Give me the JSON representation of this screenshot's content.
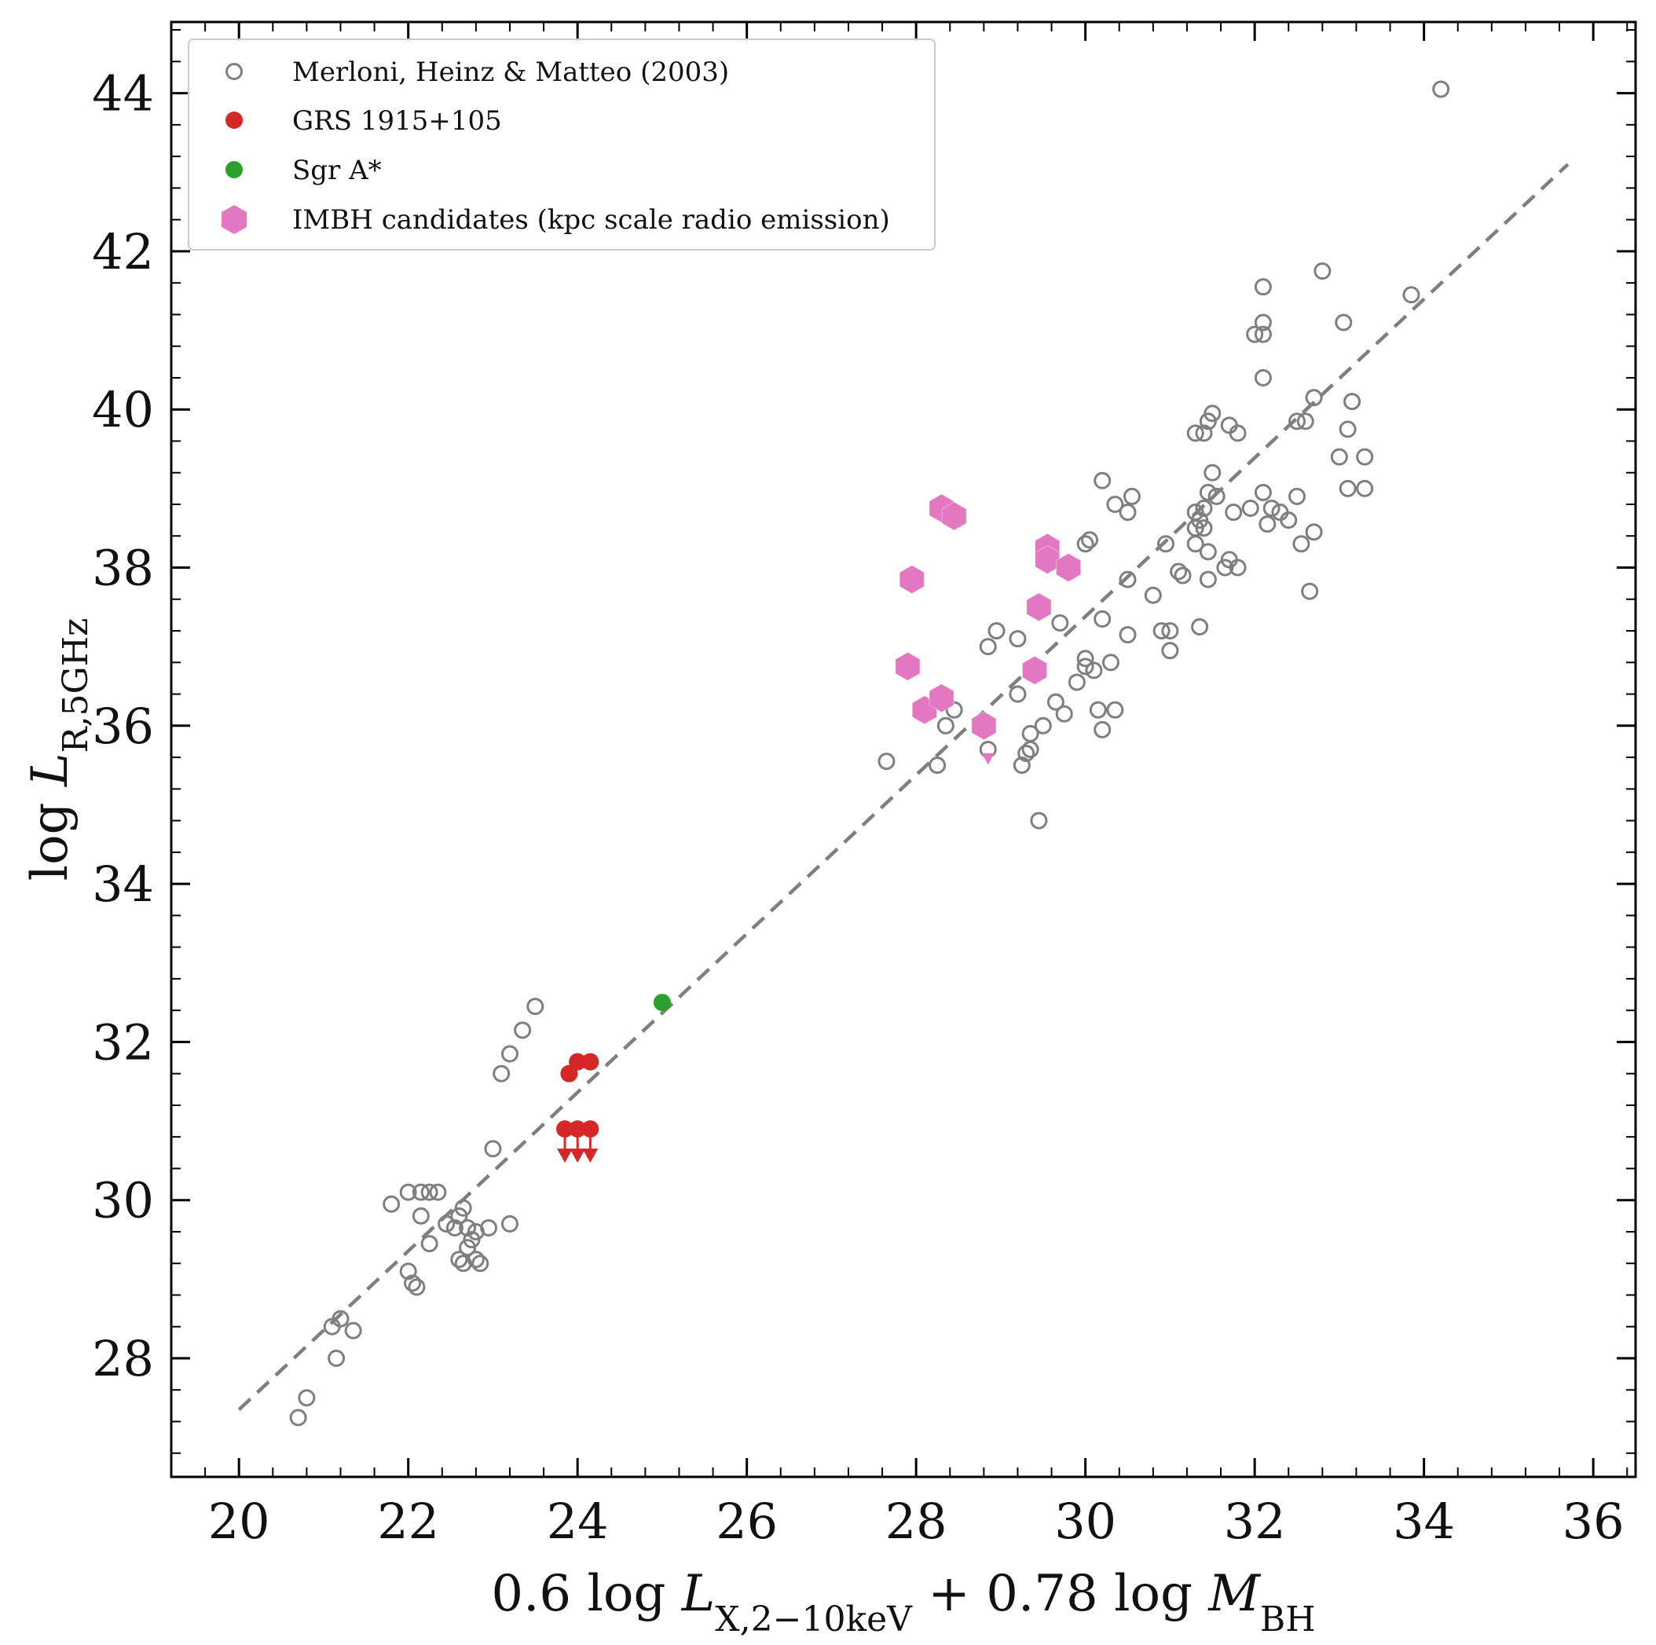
{
  "chart_data": {
    "type": "scatter",
    "xlabel": "0.6 log L_{X,2-10keV} + 0.78 log M_BH",
    "ylabel": "log L_{R,5GHz}",
    "xlim": [
      19.2,
      36.5
    ],
    "ylim": [
      26.5,
      44.9
    ],
    "xticks": [
      20,
      22,
      24,
      26,
      28,
      30,
      32,
      34,
      36
    ],
    "yticks": [
      28,
      30,
      32,
      34,
      36,
      38,
      40,
      42,
      44
    ],
    "grid": false,
    "legend_position": "upper-left",
    "fit_line": {
      "style": "dashed",
      "color": "#7f7f7f",
      "x": [
        20.0,
        35.7
      ],
      "y": [
        27.35,
        43.1
      ]
    },
    "series": [
      {
        "name": "Merloni, Heinz & Matteo (2003)",
        "marker": "open-circle",
        "color": "#7f7f7f",
        "points": [
          [
            20.7,
            27.25
          ],
          [
            20.8,
            27.5
          ],
          [
            21.1,
            28.4
          ],
          [
            21.2,
            28.5
          ],
          [
            21.35,
            28.35
          ],
          [
            21.15,
            28.0
          ],
          [
            21.8,
            29.95
          ],
          [
            22.0,
            30.1
          ],
          [
            22.15,
            30.1
          ],
          [
            22.25,
            30.1
          ],
          [
            22.35,
            30.1
          ],
          [
            22.15,
            29.8
          ],
          [
            22.25,
            29.45
          ],
          [
            22.0,
            29.1
          ],
          [
            22.05,
            28.95
          ],
          [
            22.1,
            28.9
          ],
          [
            22.45,
            29.7
          ],
          [
            22.6,
            29.8
          ],
          [
            22.65,
            29.9
          ],
          [
            22.55,
            29.65
          ],
          [
            22.6,
            29.25
          ],
          [
            22.7,
            29.4
          ],
          [
            22.75,
            29.5
          ],
          [
            22.8,
            29.6
          ],
          [
            22.65,
            29.2
          ],
          [
            22.8,
            29.25
          ],
          [
            22.85,
            29.2
          ],
          [
            22.95,
            29.65
          ],
          [
            22.7,
            29.65
          ],
          [
            23.0,
            30.65
          ],
          [
            23.1,
            31.6
          ],
          [
            23.2,
            31.85
          ],
          [
            23.35,
            32.15
          ],
          [
            23.5,
            32.45
          ],
          [
            23.2,
            29.7
          ],
          [
            27.65,
            35.55
          ],
          [
            28.25,
            35.5
          ],
          [
            28.35,
            36.0
          ],
          [
            28.45,
            36.2
          ],
          [
            28.85,
            35.7
          ],
          [
            28.85,
            37.0
          ],
          [
            28.95,
            37.2
          ],
          [
            29.2,
            37.1
          ],
          [
            29.2,
            36.4
          ],
          [
            29.25,
            35.5
          ],
          [
            29.3,
            35.65
          ],
          [
            29.35,
            35.7
          ],
          [
            29.35,
            35.9
          ],
          [
            29.5,
            36.0
          ],
          [
            29.45,
            34.8
          ],
          [
            29.65,
            36.3
          ],
          [
            29.75,
            36.15
          ],
          [
            29.7,
            37.3
          ],
          [
            29.9,
            36.55
          ],
          [
            30.0,
            36.75
          ],
          [
            30.0,
            36.85
          ],
          [
            30.1,
            36.7
          ],
          [
            30.15,
            36.2
          ],
          [
            30.2,
            35.95
          ],
          [
            30.3,
            36.8
          ],
          [
            30.35,
            36.2
          ],
          [
            30.2,
            37.35
          ],
          [
            30.5,
            37.15
          ],
          [
            30.5,
            37.85
          ],
          [
            30.05,
            38.35
          ],
          [
            30.0,
            38.3
          ],
          [
            30.2,
            39.1
          ],
          [
            30.35,
            38.8
          ],
          [
            30.5,
            38.7
          ],
          [
            30.55,
            38.9
          ],
          [
            30.8,
            37.65
          ],
          [
            30.9,
            37.2
          ],
          [
            30.95,
            38.3
          ],
          [
            31.0,
            37.2
          ],
          [
            31.0,
            36.95
          ],
          [
            31.1,
            37.95
          ],
          [
            31.15,
            37.9
          ],
          [
            31.3,
            38.3
          ],
          [
            31.3,
            38.5
          ],
          [
            31.35,
            38.6
          ],
          [
            31.4,
            38.5
          ],
          [
            31.3,
            38.7
          ],
          [
            31.4,
            38.75
          ],
          [
            31.35,
            37.25
          ],
          [
            31.45,
            38.2
          ],
          [
            31.45,
            37.85
          ],
          [
            31.45,
            38.95
          ],
          [
            31.5,
            39.2
          ],
          [
            31.55,
            38.9
          ],
          [
            31.65,
            38.0
          ],
          [
            31.7,
            38.1
          ],
          [
            31.8,
            38.0
          ],
          [
            31.75,
            38.7
          ],
          [
            31.3,
            39.7
          ],
          [
            31.4,
            39.7
          ],
          [
            31.45,
            39.85
          ],
          [
            31.5,
            39.95
          ],
          [
            31.7,
            39.8
          ],
          [
            31.8,
            39.7
          ],
          [
            31.95,
            38.75
          ],
          [
            32.1,
            38.95
          ],
          [
            32.2,
            38.75
          ],
          [
            32.3,
            38.7
          ],
          [
            32.4,
            38.6
          ],
          [
            32.15,
            38.55
          ],
          [
            32.55,
            38.3
          ],
          [
            32.7,
            38.45
          ],
          [
            32.65,
            37.7
          ],
          [
            32.5,
            38.9
          ],
          [
            32.5,
            39.85
          ],
          [
            32.6,
            39.85
          ],
          [
            32.7,
            40.15
          ],
          [
            33.0,
            39.4
          ],
          [
            33.1,
            39.75
          ],
          [
            33.1,
            39.0
          ],
          [
            33.3,
            39.4
          ],
          [
            33.3,
            39.0
          ],
          [
            33.15,
            40.1
          ],
          [
            32.0,
            40.95
          ],
          [
            32.1,
            40.95
          ],
          [
            32.1,
            41.1
          ],
          [
            32.1,
            41.55
          ],
          [
            32.1,
            40.4
          ],
          [
            32.8,
            41.75
          ],
          [
            33.05,
            41.1
          ],
          [
            33.85,
            41.45
          ],
          [
            34.2,
            44.05
          ]
        ]
      },
      {
        "name": "GRS 1915+105",
        "marker": "filled-circle",
        "color": "#d62728",
        "points": [
          [
            23.9,
            31.6
          ],
          [
            24.0,
            31.75
          ],
          [
            24.15,
            31.75
          ]
        ],
        "upper_limits": [
          [
            23.85,
            30.9
          ],
          [
            24.0,
            30.9
          ],
          [
            24.15,
            30.9
          ]
        ]
      },
      {
        "name": "Sgr A*",
        "marker": "filled-circle",
        "color": "#2ca02c",
        "points": [
          [
            25.0,
            32.5
          ]
        ]
      },
      {
        "name": "IMBH candidates (kpc scale radio emission)",
        "marker": "hexagon",
        "color": "#e377c2",
        "points": [
          [
            28.3,
            38.75
          ],
          [
            28.45,
            38.65
          ],
          [
            27.95,
            37.85
          ],
          [
            27.9,
            36.75
          ],
          [
            28.1,
            36.2
          ],
          [
            28.3,
            36.35
          ],
          [
            28.8,
            36.0
          ],
          [
            29.45,
            37.5
          ],
          [
            29.55,
            38.25
          ],
          [
            29.55,
            38.1
          ],
          [
            29.8,
            38.0
          ],
          [
            29.4,
            36.7
          ]
        ],
        "upper_limits": [
          [
            28.85,
            35.7
          ]
        ]
      }
    ]
  }
}
